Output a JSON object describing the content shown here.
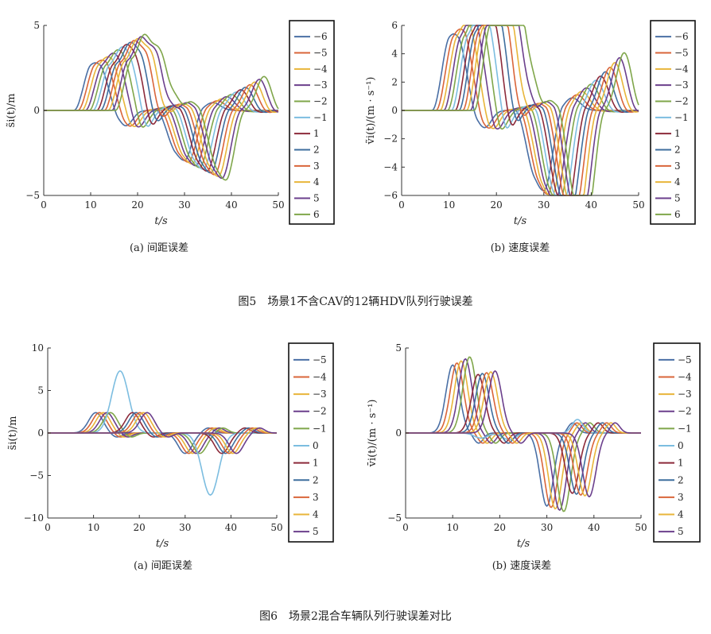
{
  "figures": [
    {
      "caption": "图5　场景1不含CAV的12辆HDV队列行驶误差",
      "panels": [
        "fig5a",
        "fig5b"
      ]
    },
    {
      "caption": "图6　场景2混合车辆队列行驶误差对比",
      "panels": [
        "fig6a",
        "fig6b"
      ]
    }
  ],
  "chart_data": [
    {
      "id": "fig5a",
      "type": "line",
      "subtitle": "(a) 间距误差",
      "xlabel": "t/s",
      "ylabel": "s̃i(t)/m",
      "xlim": [
        0,
        50
      ],
      "ylim": [
        -5,
        5
      ],
      "xticks": [
        0,
        10,
        20,
        30,
        40,
        50
      ],
      "yticks": [
        -5,
        0,
        5
      ],
      "legend": [
        "−6",
        "−5",
        "−4",
        "−3",
        "−2",
        "−1",
        "1",
        "2",
        "3",
        "4",
        "5",
        "6"
      ],
      "legend_placement": "right-outside",
      "series_shape": {
        "start": 5,
        "peak1": 2.8,
        "peak1_growth": 0.1,
        "trough": -2.8,
        "trough_growth": 0.1,
        "shift_per_series": 0.8,
        "first_peak_time": 10.5,
        "first_trough_time": 30.0
      }
    },
    {
      "id": "fig5b",
      "type": "line",
      "subtitle": "(b) 速度误差",
      "xlabel": "t/s",
      "ylabel": "ṽi(t)/(m · s⁻¹)",
      "xlim": [
        0,
        50
      ],
      "ylim": [
        -6,
        6
      ],
      "xticks": [
        0,
        10,
        20,
        30,
        40,
        50
      ],
      "yticks": [
        -6,
        -4,
        -2,
        0,
        2,
        4,
        6
      ],
      "legend": [
        "−6",
        "−5",
        "−4",
        "−3",
        "−2",
        "−1",
        "1",
        "2",
        "3",
        "4",
        "5",
        "6"
      ],
      "legend_placement": "right-outside",
      "series_shape": {
        "start": 5,
        "peak1": 4.0,
        "peak1_growth": 0.17,
        "trough": -4.0,
        "trough_growth": 0.17,
        "shift_per_series": 0.8,
        "first_peak_time": 10.5,
        "first_trough_time": 30.5
      }
    },
    {
      "id": "fig6a",
      "type": "line",
      "subtitle": "(a) 间距误差",
      "xlabel": "t/s",
      "ylabel": "s̃i(t)/m",
      "xlim": [
        0,
        50
      ],
      "ylim": [
        -10,
        10
      ],
      "xticks": [
        0,
        10,
        20,
        30,
        40,
        50
      ],
      "yticks": [
        -10,
        -5,
        0,
        5,
        10
      ],
      "legend": [
        "−5",
        "−4",
        "−3",
        "−2",
        "−1",
        "0",
        "1",
        "2",
        "3",
        "4",
        "5"
      ],
      "legend_placement": "right-outside",
      "series_shape": {
        "start": 5,
        "peak1": 2.4,
        "trough": -2.4,
        "cav_peak": 7.3,
        "cav_trough": -7.3,
        "cav_peak_time": 15.8,
        "cav_trough_time": 35.5,
        "shift_per_series": 0.8
      }
    },
    {
      "id": "fig6b",
      "type": "line",
      "subtitle": "(b) 速度误差",
      "xlabel": "t/s",
      "ylabel": "v̄i(t)/(m · s⁻¹)",
      "xlim": [
        0,
        50
      ],
      "ylim": [
        -5,
        5
      ],
      "xticks": [
        0,
        10,
        20,
        30,
        40,
        50
      ],
      "yticks": [
        -5,
        0,
        5
      ],
      "legend": [
        "−5",
        "−4",
        "−3",
        "−2",
        "−1",
        "0",
        "1",
        "2",
        "3",
        "4",
        "5"
      ],
      "legend_placement": "right-outside",
      "series_shape": {
        "start": 5,
        "peak1": 4.0,
        "peak2": 3.4,
        "trough": -4.3,
        "trough2": -3.5,
        "shift_per_series": 0.8
      }
    }
  ],
  "colors": [
    "#4a6fa5",
    "#d9653a",
    "#e8b53a",
    "#6b3f8c",
    "#7fa64a",
    "#7cbde0",
    "#8c2a3a",
    "#3e6e9e",
    "#d9653a",
    "#e8b53a",
    "#6b3f8c",
    "#7fa64a"
  ]
}
